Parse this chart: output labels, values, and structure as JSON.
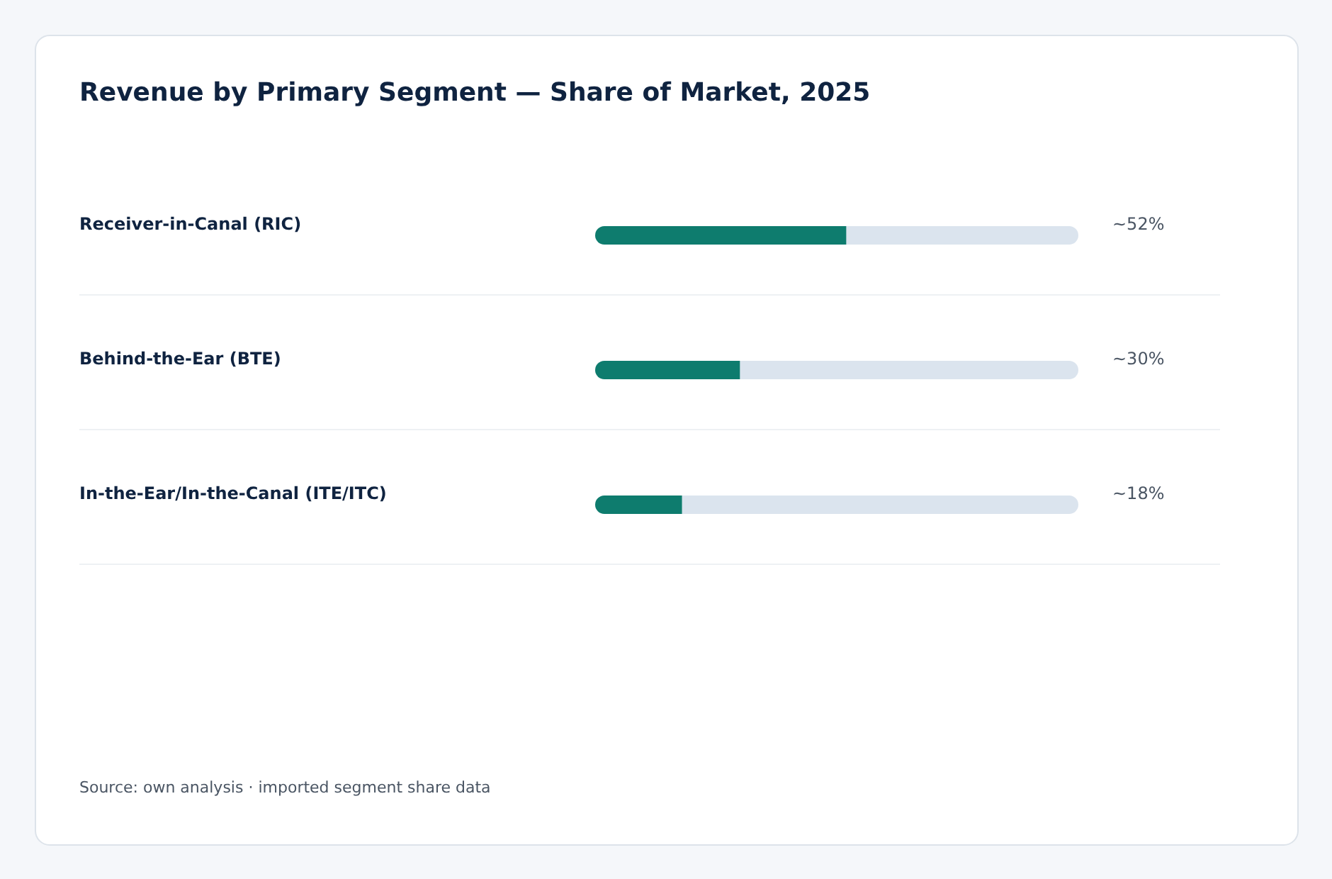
{
  "chart_data": {
    "type": "bar",
    "orientation": "horizontal",
    "stacked": true,
    "title": "Revenue by Primary Segment — Share of Market, 2025",
    "categories": [
      "Receiver-in-Canal (RIC)",
      "Behind-the-Ear (BTE)",
      "In-the-Ear/In-the-Canal (ITE/ITC)"
    ],
    "series": [
      {
        "color": "#0e7c6e",
        "values": [
          52,
          30,
          18
        ],
        "value_labels": [
          "~52%",
          "~30%",
          "~18%"
        ]
      },
      {
        "color": "#dbe4ee",
        "values": [
          48,
          70,
          82
        ]
      }
    ],
    "xlim": [
      0,
      100
    ],
    "annotations": [
      "Source: own analysis · imported segment share data"
    ]
  }
}
